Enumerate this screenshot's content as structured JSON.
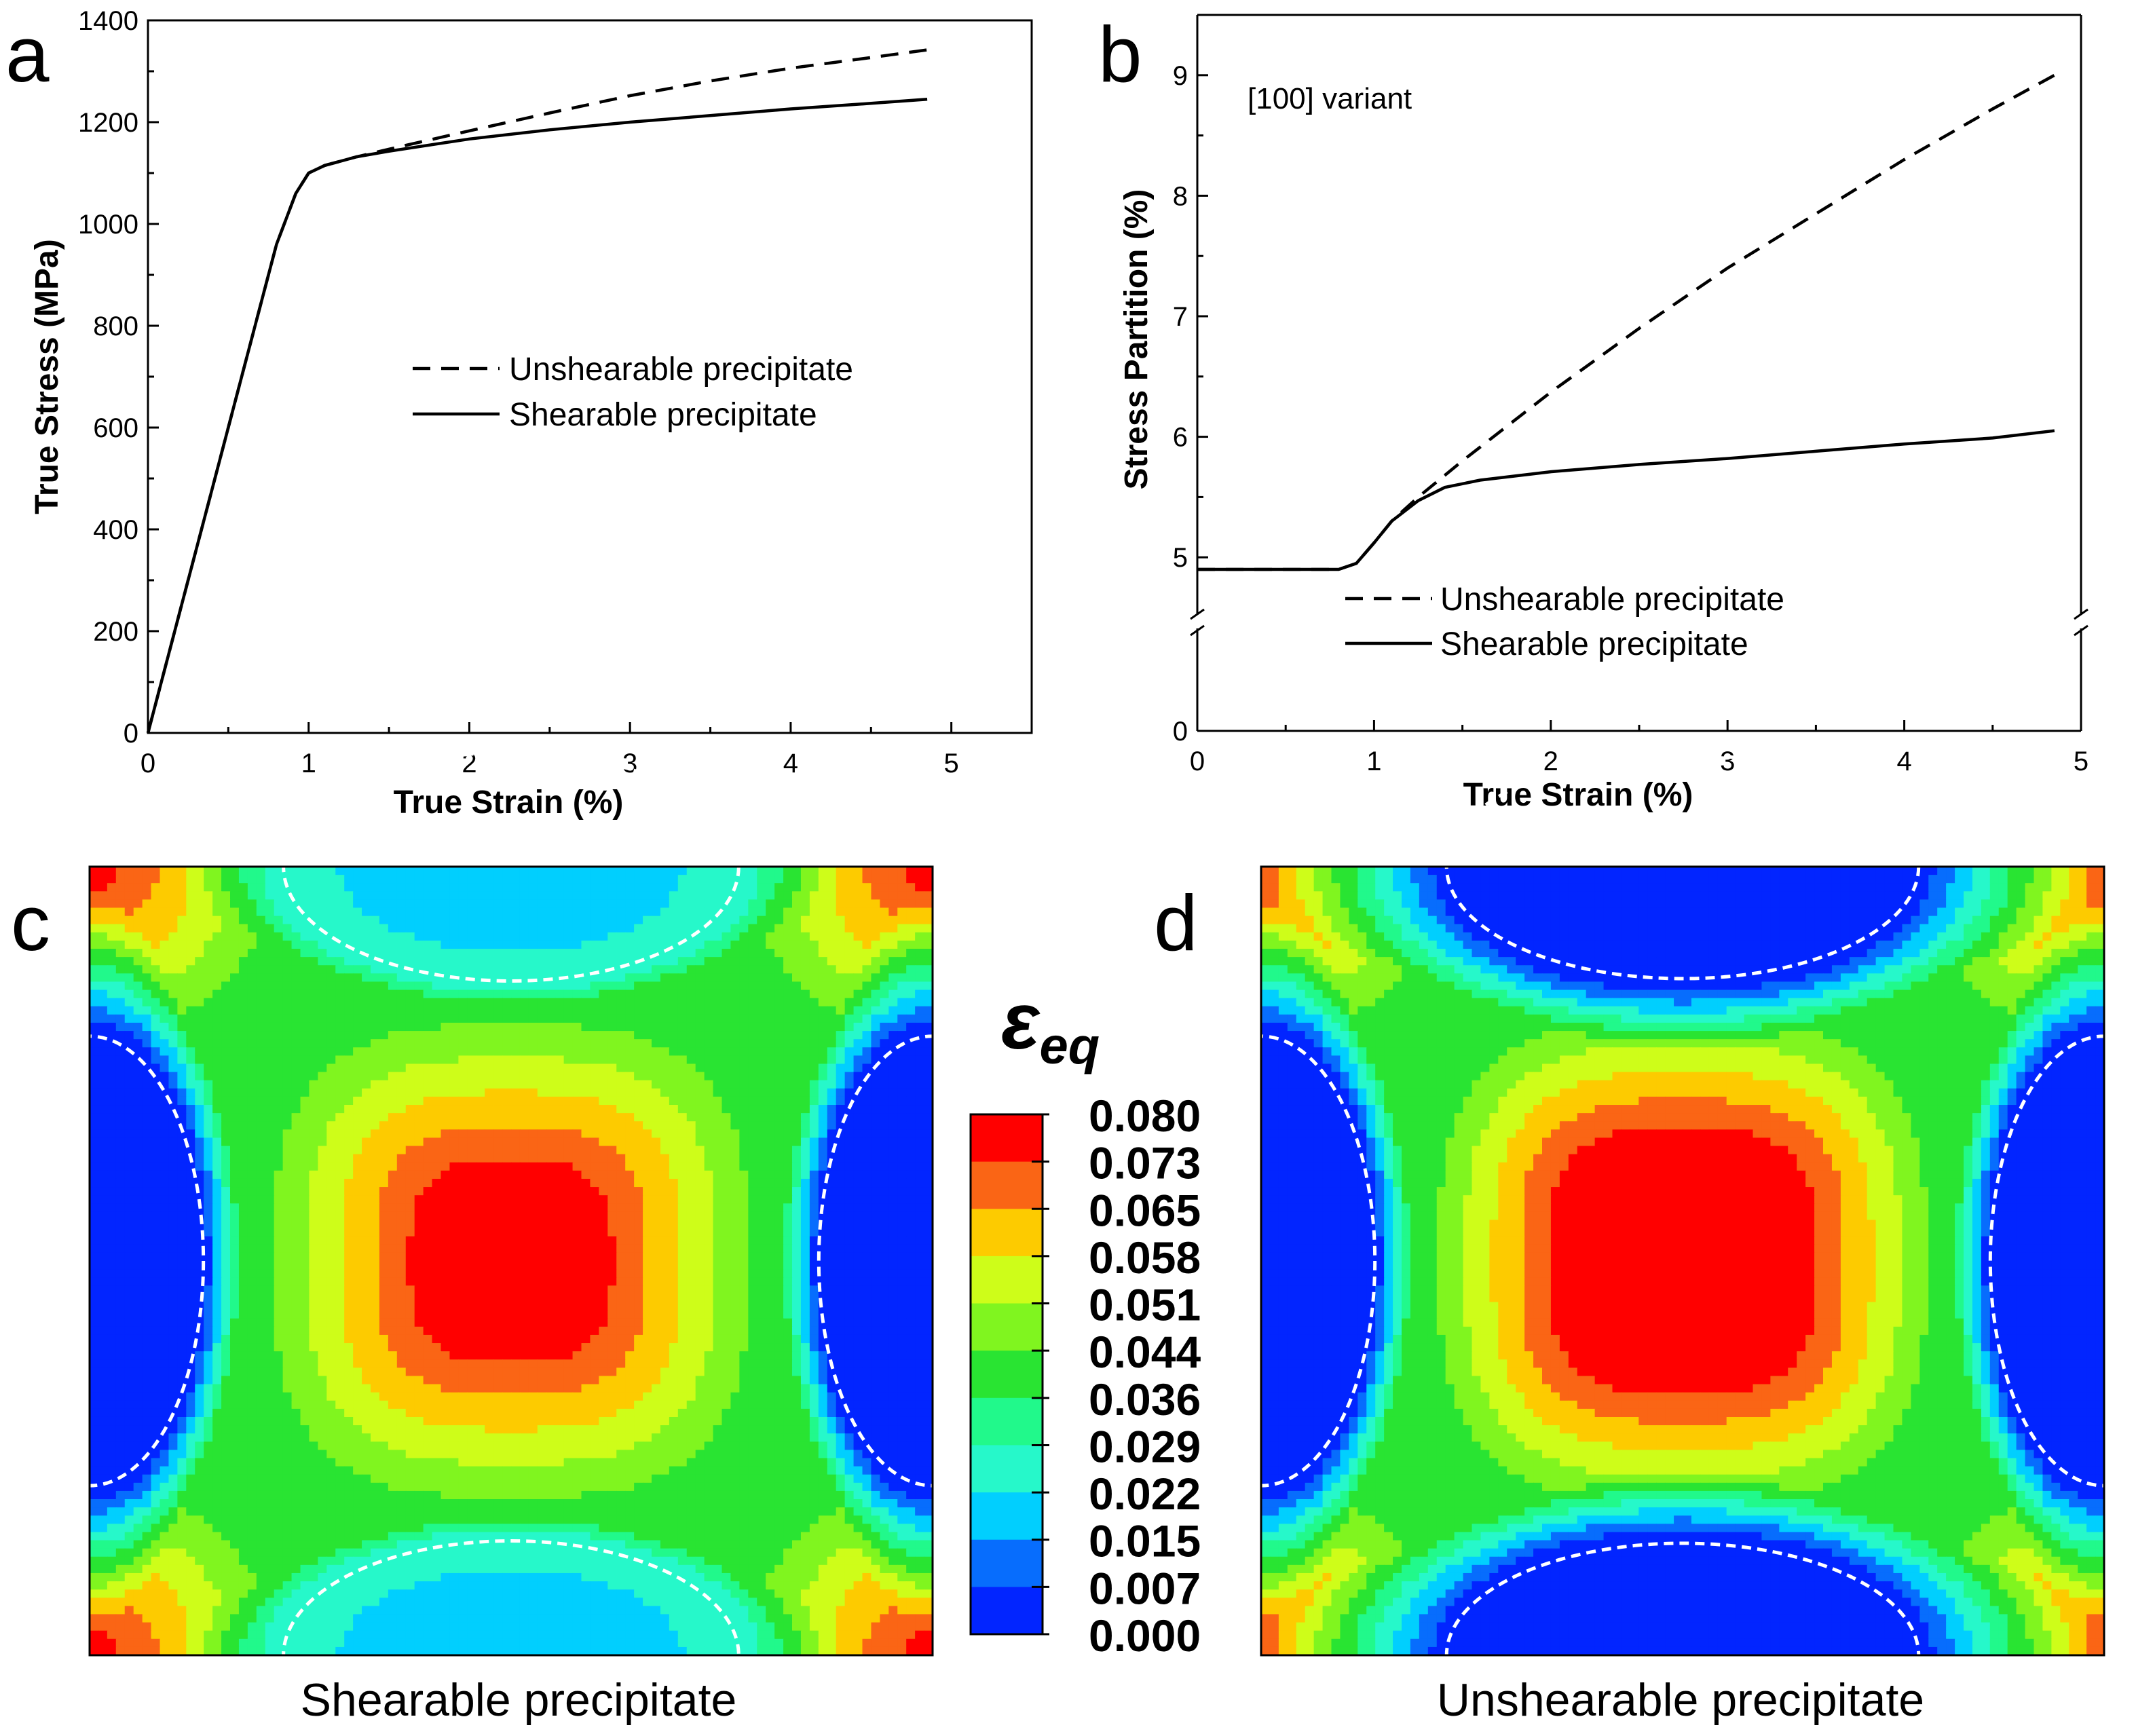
{
  "panels": {
    "a": {
      "letter": "a"
    },
    "b": {
      "letter": "b"
    },
    "c": {
      "letter": "c",
      "caption": "Shearable precipitate"
    },
    "d": {
      "letter": "d",
      "caption": "Unshearable precipitate"
    }
  },
  "colorbar": {
    "symbol": "ε",
    "subscript": "eq",
    "ticks": [
      "0.080",
      "0.073",
      "0.065",
      "0.058",
      "0.051",
      "0.044",
      "0.036",
      "0.029",
      "0.022",
      "0.015",
      "0.007",
      "0.000"
    ],
    "colors": [
      "#ff0000",
      "#fa6515",
      "#fdcb00",
      "#cefd19",
      "#80f51f",
      "#29e432",
      "#21f98b",
      "#26f8ca",
      "#01cffe",
      "#076dfd",
      "#0225ff"
    ]
  },
  "colors": {
    "line": "#000000",
    "frame": "#000000",
    "boundary": "#ffffff"
  },
  "chart_data": [
    {
      "id": "a",
      "type": "line",
      "xlabel": "True Strain (%)",
      "ylabel": "True Stress (MPa)",
      "xlim": [
        0,
        5.5
      ],
      "ylim": [
        0,
        1400
      ],
      "xticks": [
        0,
        1,
        2,
        3,
        4,
        5
      ],
      "yticks": [
        0,
        200,
        400,
        600,
        800,
        1000,
        1200,
        1400
      ],
      "legend_position": "center-right",
      "series": [
        {
          "name": "Unshearable precipitate",
          "style": "dashed",
          "x": [
            0,
            0.2,
            0.4,
            0.6,
            0.8,
            0.92,
            1.0,
            1.1,
            1.3,
            1.5,
            2.0,
            2.5,
            3.0,
            3.5,
            4.0,
            4.5,
            4.85
          ],
          "y": [
            0,
            240,
            480,
            720,
            960,
            1060,
            1100,
            1115,
            1132,
            1147,
            1183,
            1218,
            1252,
            1281,
            1306,
            1327,
            1342
          ]
        },
        {
          "name": "Shearable precipitate",
          "style": "solid",
          "x": [
            0,
            0.2,
            0.4,
            0.6,
            0.8,
            0.92,
            1.0,
            1.1,
            1.3,
            1.5,
            2.0,
            2.5,
            3.0,
            3.5,
            4.0,
            4.5,
            4.85
          ],
          "y": [
            0,
            240,
            480,
            720,
            960,
            1060,
            1100,
            1115,
            1132,
            1143,
            1167,
            1185,
            1200,
            1213,
            1226,
            1237,
            1245
          ]
        }
      ]
    },
    {
      "id": "b",
      "type": "line",
      "xlabel": "True Strain (%)",
      "ylabel": "Stress Partition (%)",
      "annotation": "[100] variant",
      "xlim": [
        0,
        5
      ],
      "ylim_upper": [
        4.5,
        9.5
      ],
      "ylim_lower": [
        0,
        0.95
      ],
      "axis_break": true,
      "xticks": [
        0,
        1,
        2,
        3,
        4,
        5
      ],
      "yticks": [
        0,
        5,
        6,
        7,
        8,
        9
      ],
      "legend_position": "bottom-left",
      "series": [
        {
          "name": "Unshearable precipitate",
          "style": "dashed",
          "x": [
            0,
            0.8,
            0.9,
            1.0,
            1.1,
            1.25,
            1.5,
            2.0,
            2.5,
            3.0,
            3.5,
            4.0,
            4.5,
            4.85
          ],
          "y": [
            4.9,
            4.9,
            4.95,
            5.12,
            5.3,
            5.5,
            5.8,
            6.37,
            6.9,
            7.4,
            7.85,
            8.3,
            8.72,
            9.0
          ]
        },
        {
          "name": "Shearable precipitate",
          "style": "solid",
          "x": [
            0,
            0.8,
            0.9,
            1.0,
            1.1,
            1.25,
            1.4,
            1.6,
            2.0,
            2.5,
            3.0,
            3.5,
            4.0,
            4.5,
            4.85
          ],
          "y": [
            4.9,
            4.9,
            4.95,
            5.12,
            5.3,
            5.47,
            5.58,
            5.64,
            5.71,
            5.77,
            5.82,
            5.88,
            5.94,
            5.99,
            6.05
          ]
        }
      ]
    }
  ]
}
